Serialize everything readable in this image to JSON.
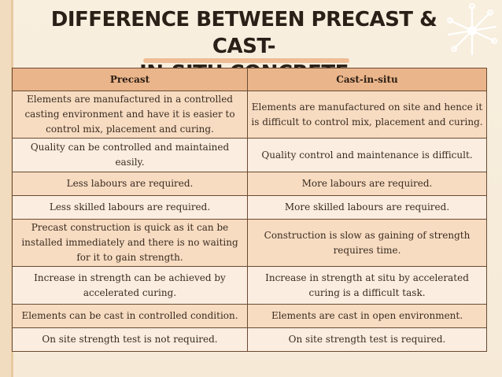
{
  "title": {
    "line1": "DIFFERENCE BETWEEN PRECAST & CAST-",
    "line2": "IN-SITU CONCRETE"
  },
  "colors": {
    "header_bg": "#eab58a",
    "row_shaded": "#f7dcc2",
    "row_light": "#fbede0",
    "border": "#6a4a32",
    "accent": "#e8a36d"
  },
  "table": {
    "headers": [
      "Precast",
      "Cast-in-situ"
    ],
    "rows": [
      {
        "precast": "Elements are manufactured in a controlled casting environment and have it is easier to control mix, placement and curing.",
        "cast_in_situ": "Elements are manufactured on site and hence it is difficult to control mix, placement and curing."
      },
      {
        "precast": "Quality can be controlled and maintained easily.",
        "cast_in_situ": "Quality control and maintenance is difficult."
      },
      {
        "precast": "Less labours are required.",
        "cast_in_situ": "More labours are required."
      },
      {
        "precast": "Less skilled labours are required.",
        "cast_in_situ": "More skilled labours are required."
      },
      {
        "precast": "Precast construction is quick as it can be installed immediately and there is no waiting for it to gain strength.",
        "cast_in_situ": "Construction is slow as gaining of strength requires time."
      },
      {
        "precast": "Increase in strength can be achieved by accelerated curing.",
        "cast_in_situ": "Increase in strength at situ by accelerated curing is a difficult task."
      },
      {
        "precast": "Elements can be cast in controlled condition.",
        "cast_in_situ": "Elements are cast in open environment."
      },
      {
        "precast": "On site strength test is not required.",
        "cast_in_situ": "On site strength test is required."
      }
    ]
  }
}
